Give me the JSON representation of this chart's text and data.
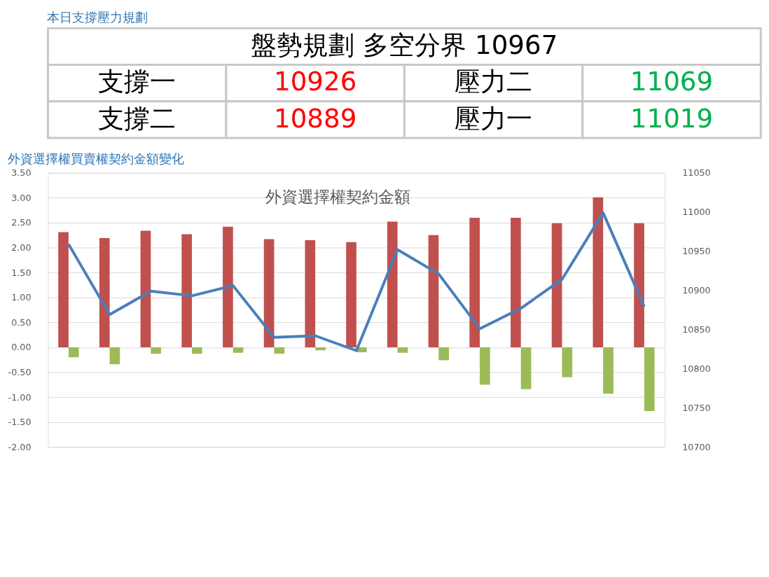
{
  "chart_data": [
    {
      "type": "other",
      "title": "本日支撐壓力規劃",
      "annotations": [
        "盤勢規劃 多空分界 10967",
        "支撐一",
        "10926",
        "壓力二",
        "11069",
        "支撐二",
        "10889",
        "壓力一",
        "11019"
      ],
      "colors": [
        "#000000",
        "#000000",
        "#ff0000",
        "#000000",
        "#00b050",
        "#000000",
        "#ff0000",
        "#000000",
        "#00b050"
      ]
    },
    {
      "type": "bar",
      "title": "外資選擇權買賣權契約金額變化",
      "subtitle": "外資選擇權契約金額",
      "categories": [
        null,
        null,
        null,
        null,
        null,
        null,
        null,
        null,
        null,
        null,
        null,
        null,
        null,
        null,
        null
      ],
      "series": [
        {
          "color": "#c0504d",
          "values": [
            2.31,
            2.19,
            2.34,
            2.27,
            2.42,
            2.17,
            2.15,
            2.11,
            2.52,
            2.25,
            2.6,
            2.6,
            2.49,
            3.01,
            2.49
          ]
        },
        {
          "color": "#9bbb59",
          "values": [
            -0.2,
            -0.34,
            -0.13,
            -0.13,
            -0.11,
            -0.13,
            -0.06,
            -0.1,
            -0.11,
            -0.26,
            -0.75,
            -0.84,
            -0.6,
            -0.93,
            -1.28
          ]
        },
        {
          "type": "line",
          "axis": "y2",
          "color": "#4a7ebb",
          "line_style": "solid",
          "values": [
            10959,
            10869,
            10899,
            10893,
            10906,
            10840,
            10842,
            10823,
            10952,
            10921,
            10851,
            10877,
            10914,
            10999,
            10879
          ]
        }
      ],
      "ylim": [
        -2,
        3.5
      ],
      "yticks": [
        {
          "value": -2,
          "label": "-2.00"
        },
        {
          "value": -1.5,
          "label": "-1.50"
        },
        {
          "value": -1,
          "label": "-1.00"
        },
        {
          "value": -0.5,
          "label": "-0.50"
        },
        {
          "value": 0,
          "label": "0.00"
        },
        {
          "value": 0.5,
          "label": "0.50"
        },
        {
          "value": 1,
          "label": "1.00"
        },
        {
          "value": 1.5,
          "label": "1.50"
        },
        {
          "value": 2,
          "label": "2.00"
        },
        {
          "value": 2.5,
          "label": "2.50"
        },
        {
          "value": 3,
          "label": "3.00"
        },
        {
          "value": 3.5,
          "label": "3.50"
        }
      ],
      "y2lim": [
        10700,
        11050
      ],
      "y2ticks": [
        10700,
        10750,
        10800,
        10850,
        10900,
        10950,
        11000,
        11050
      ],
      "grid": "y"
    }
  ]
}
